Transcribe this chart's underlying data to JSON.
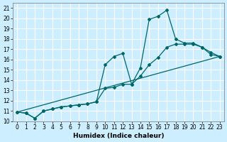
{
  "xlabel": "Humidex (Indice chaleur)",
  "bg_color": "#cceeff",
  "grid_color": "#ffffff",
  "line_color": "#006666",
  "xlim": [
    -0.5,
    23.5
  ],
  "ylim": [
    10,
    21.5
  ],
  "xticks": [
    0,
    1,
    2,
    3,
    4,
    5,
    6,
    7,
    8,
    9,
    10,
    11,
    12,
    13,
    14,
    15,
    16,
    17,
    18,
    19,
    20,
    21,
    22,
    23
  ],
  "yticks": [
    10,
    11,
    12,
    13,
    14,
    15,
    16,
    17,
    18,
    19,
    20,
    21
  ],
  "series1_x": [
    0,
    1,
    2,
    3,
    4,
    5,
    6,
    7,
    8,
    9,
    10,
    11,
    12,
    13,
    14,
    15,
    16,
    17,
    18,
    19,
    20,
    21,
    22,
    23
  ],
  "series1_y": [
    10.9,
    10.8,
    10.3,
    11.0,
    11.2,
    11.4,
    11.5,
    11.6,
    11.7,
    11.9,
    15.5,
    16.3,
    16.6,
    13.6,
    15.2,
    19.9,
    20.2,
    20.8,
    18.0,
    17.6,
    17.6,
    17.2,
    16.5,
    16.3
  ],
  "series2_x": [
    0,
    1,
    2,
    3,
    4,
    5,
    6,
    7,
    8,
    9,
    10,
    11,
    12,
    13,
    14,
    15,
    16,
    17,
    18,
    19,
    20,
    21,
    22,
    23
  ],
  "series2_y": [
    10.9,
    10.8,
    10.3,
    11.0,
    11.2,
    11.4,
    11.5,
    11.6,
    11.7,
    11.9,
    13.2,
    13.3,
    13.6,
    13.6,
    14.4,
    15.5,
    16.2,
    17.2,
    17.5,
    17.5,
    17.5,
    17.2,
    16.7,
    16.3
  ],
  "series3_x": [
    0,
    23
  ],
  "series3_y": [
    10.9,
    16.3
  ],
  "marker_style": "D",
  "markersize": 2.0,
  "linewidth": 0.9,
  "tick_fontsize": 5.5,
  "xlabel_fontsize": 6.5
}
